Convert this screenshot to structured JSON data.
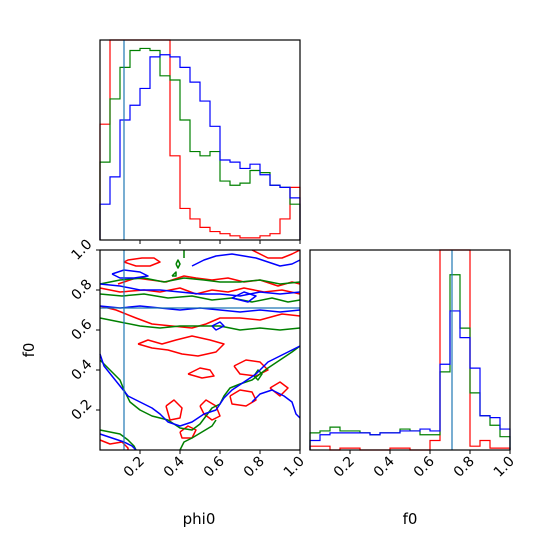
{
  "chart_data": {
    "type": "corner",
    "params": [
      "phi0",
      "f0"
    ],
    "x_axis_labels": {
      "corner": "phi0",
      "hist_f0": "f0"
    },
    "y_axis_label": "f0",
    "xlim": [
      0,
      1.0
    ],
    "ylim": [
      0,
      1.0
    ],
    "ticks": [
      0.2,
      0.4,
      0.6,
      0.8,
      1.0
    ],
    "tick_labels": [
      "0.2",
      "0.4",
      "0.6",
      "0.8",
      "1.0"
    ],
    "truth": {
      "phi0": 0.12,
      "f0": 0.71,
      "color": "#1f77b4"
    },
    "series": [
      {
        "color": "#ff0000"
      },
      {
        "color": "#008000"
      },
      {
        "color": "#0000ff"
      }
    ],
    "hist_bins": [
      0,
      0.05,
      0.1,
      0.15,
      0.2,
      0.25,
      0.3,
      0.35,
      0.4,
      0.45,
      0.5,
      0.55,
      0.6,
      0.65,
      0.7,
      0.75,
      0.8,
      0.85,
      0.9,
      0.95,
      1.0
    ],
    "hist_phi0": [
      [
        0.55,
        1.2,
        1.2,
        1.2,
        1.2,
        1.2,
        1.2,
        0.4,
        0.15,
        0.1,
        0.06,
        0.04,
        0.03,
        0.02,
        0.01,
        0.01,
        0.02,
        0.03,
        0.1,
        0.25
      ],
      [
        0.37,
        0.67,
        0.82,
        0.9,
        0.91,
        0.9,
        0.78,
        0.76,
        0.57,
        0.42,
        0.4,
        0.42,
        0.28,
        0.26,
        0.27,
        0.33,
        0.32,
        0.26,
        0.25,
        0.17
      ],
      [
        0.17,
        0.3,
        0.57,
        0.64,
        0.72,
        0.87,
        0.88,
        0.87,
        0.82,
        0.75,
        0.66,
        0.54,
        0.38,
        0.37,
        0.34,
        0.36,
        0.31,
        0.26,
        0.25,
        0.2
      ]
    ],
    "hist_f0": [
      [
        0.02,
        0.02,
        0.0,
        0.01,
        0.01,
        0.0,
        0.0,
        0.0,
        0.01,
        0.01,
        0.0,
        0.0,
        0.05,
        1.5,
        1.5,
        1.5,
        0.02,
        0.05,
        0.01,
        0.01
      ],
      [
        0.09,
        0.1,
        0.12,
        0.1,
        0.1,
        0.09,
        0.08,
        0.09,
        0.09,
        0.11,
        0.1,
        0.08,
        0.08,
        0.41,
        0.92,
        0.64,
        0.3,
        0.18,
        0.13,
        0.07
      ],
      [
        0.05,
        0.08,
        0.09,
        0.09,
        0.09,
        0.09,
        0.08,
        0.09,
        0.09,
        0.1,
        0.1,
        0.11,
        0.1,
        0.45,
        0.73,
        0.59,
        0.43,
        0.18,
        0.17,
        0.11
      ]
    ],
    "contours": [
      [
        [
          [
            0.09,
            0.83
          ],
          [
            0.18,
            0.86
          ],
          [
            0.33,
            0.84
          ],
          [
            0.42,
            0.87
          ],
          [
            0.48,
            0.86
          ],
          [
            0.56,
            0.85
          ],
          [
            0.64,
            0.86
          ],
          [
            0.72,
            0.84
          ],
          [
            0.8,
            0.85
          ],
          [
            0.89,
            0.82
          ],
          [
            0.96,
            0.84
          ],
          [
            1.0,
            0.83
          ]
        ],
        [
          [
            0.0,
            0.81
          ],
          [
            0.1,
            0.79
          ],
          [
            0.22,
            0.8
          ],
          [
            0.3,
            0.79
          ],
          [
            0.4,
            0.81
          ],
          [
            0.48,
            0.78
          ],
          [
            0.56,
            0.8
          ],
          [
            0.64,
            0.79
          ],
          [
            0.72,
            0.81
          ],
          [
            0.82,
            0.79
          ],
          [
            0.91,
            0.8
          ],
          [
            1.0,
            0.78
          ]
        ],
        [
          [
            0.0,
            0.72
          ],
          [
            0.08,
            0.7
          ],
          [
            0.18,
            0.66
          ],
          [
            0.26,
            0.63
          ],
          [
            0.36,
            0.62
          ],
          [
            0.46,
            0.61
          ],
          [
            0.53,
            0.63
          ],
          [
            0.6,
            0.66
          ],
          [
            0.7,
            0.66
          ],
          [
            0.8,
            0.65
          ],
          [
            0.91,
            0.68
          ],
          [
            1.0,
            0.67
          ]
        ],
        [
          [
            0.12,
            0.94
          ],
          [
            0.18,
            0.92
          ],
          [
            0.25,
            0.92
          ],
          [
            0.3,
            0.94
          ],
          [
            0.27,
            0.96
          ],
          [
            0.21,
            0.96
          ],
          [
            0.14,
            0.95
          ],
          [
            0.12,
            0.94
          ]
        ],
        [
          [
            0.76,
            1.0
          ],
          [
            0.84,
            0.96
          ],
          [
            0.91,
            0.96
          ],
          [
            0.96,
            0.98
          ],
          [
            1.0,
            1.0
          ]
        ],
        [
          [
            0.19,
            0.53
          ],
          [
            0.24,
            0.55
          ],
          [
            0.31,
            0.53
          ],
          [
            0.38,
            0.55
          ],
          [
            0.46,
            0.57
          ],
          [
            0.55,
            0.55
          ],
          [
            0.62,
            0.53
          ],
          [
            0.58,
            0.49
          ],
          [
            0.49,
            0.47
          ],
          [
            0.41,
            0.48
          ],
          [
            0.34,
            0.5
          ],
          [
            0.26,
            0.51
          ],
          [
            0.19,
            0.53
          ]
        ],
        [
          [
            0.44,
            0.38
          ],
          [
            0.5,
            0.41
          ],
          [
            0.55,
            0.4
          ],
          [
            0.57,
            0.37
          ],
          [
            0.51,
            0.36
          ],
          [
            0.44,
            0.38
          ]
        ],
        [
          [
            0.67,
            0.42
          ],
          [
            0.73,
            0.45
          ],
          [
            0.8,
            0.44
          ],
          [
            0.84,
            0.4
          ],
          [
            0.78,
            0.37
          ],
          [
            0.7,
            0.38
          ],
          [
            0.67,
            0.42
          ]
        ],
        [
          [
            0.65,
            0.27
          ],
          [
            0.7,
            0.3
          ],
          [
            0.76,
            0.29
          ],
          [
            0.78,
            0.25
          ],
          [
            0.73,
            0.22
          ],
          [
            0.66,
            0.23
          ],
          [
            0.65,
            0.27
          ]
        ],
        [
          [
            0.5,
            0.22
          ],
          [
            0.53,
            0.25
          ],
          [
            0.58,
            0.22
          ],
          [
            0.6,
            0.17
          ],
          [
            0.56,
            0.15
          ],
          [
            0.52,
            0.18
          ],
          [
            0.5,
            0.22
          ]
        ],
        [
          [
            0.33,
            0.22
          ],
          [
            0.37,
            0.25
          ],
          [
            0.41,
            0.21
          ],
          [
            0.4,
            0.16
          ],
          [
            0.35,
            0.15
          ],
          [
            0.33,
            0.22
          ]
        ],
        [
          [
            0.4,
            0.09
          ],
          [
            0.44,
            0.12
          ],
          [
            0.48,
            0.1
          ],
          [
            0.46,
            0.06
          ],
          [
            0.41,
            0.06
          ],
          [
            0.4,
            0.09
          ]
        ],
        [
          [
            0.0,
            0.05
          ],
          [
            0.05,
            0.03
          ],
          [
            0.11,
            0.04
          ],
          [
            0.14,
            0.01
          ],
          [
            0.14,
            0.0
          ]
        ],
        [
          [
            0.85,
            0.31
          ],
          [
            0.9,
            0.34
          ],
          [
            0.94,
            0.31
          ],
          [
            0.9,
            0.27
          ],
          [
            0.85,
            0.31
          ]
        ]
      ],
      [
        [
          [
            0.0,
            0.83
          ],
          [
            0.1,
            0.85
          ],
          [
            0.22,
            0.86
          ],
          [
            0.32,
            0.84
          ],
          [
            0.42,
            0.86
          ],
          [
            0.52,
            0.85
          ],
          [
            0.6,
            0.84
          ],
          [
            0.7,
            0.84
          ],
          [
            0.8,
            0.85
          ],
          [
            0.9,
            0.83
          ],
          [
            1.0,
            0.84
          ]
        ],
        [
          [
            0.0,
            0.78
          ],
          [
            0.11,
            0.77
          ],
          [
            0.22,
            0.78
          ],
          [
            0.34,
            0.76
          ],
          [
            0.46,
            0.77
          ],
          [
            0.56,
            0.75
          ],
          [
            0.66,
            0.76
          ],
          [
            0.76,
            0.74
          ],
          [
            0.86,
            0.76
          ],
          [
            0.94,
            0.74
          ],
          [
            1.0,
            0.75
          ]
        ],
        [
          [
            0.0,
            0.66
          ],
          [
            0.1,
            0.64
          ],
          [
            0.2,
            0.62
          ],
          [
            0.3,
            0.61
          ],
          [
            0.4,
            0.62
          ],
          [
            0.5,
            0.62
          ],
          [
            0.6,
            0.62
          ],
          [
            0.7,
            0.6
          ],
          [
            0.8,
            0.61
          ],
          [
            0.9,
            0.6
          ],
          [
            1.0,
            0.61
          ]
        ],
        [
          [
            0.0,
            0.45
          ],
          [
            0.05,
            0.4
          ],
          [
            0.1,
            0.35
          ],
          [
            0.12,
            0.3
          ],
          [
            0.15,
            0.24
          ],
          [
            0.2,
            0.2
          ],
          [
            0.26,
            0.17
          ],
          [
            0.34,
            0.15
          ],
          [
            0.4,
            0.11
          ],
          [
            0.46,
            0.1
          ],
          [
            0.5,
            0.13
          ],
          [
            0.53,
            0.17
          ],
          [
            0.56,
            0.21
          ],
          [
            0.6,
            0.23
          ],
          [
            0.62,
            0.27
          ],
          [
            0.65,
            0.31
          ],
          [
            0.7,
            0.33
          ],
          [
            0.76,
            0.35
          ],
          [
            0.8,
            0.38
          ],
          [
            0.84,
            0.41
          ],
          [
            0.9,
            0.45
          ],
          [
            0.96,
            0.49
          ],
          [
            1.0,
            0.52
          ]
        ],
        [
          [
            0.0,
            0.1
          ],
          [
            0.05,
            0.09
          ],
          [
            0.1,
            0.08
          ],
          [
            0.14,
            0.05
          ],
          [
            0.17,
            0.02
          ],
          [
            0.18,
            0.0
          ]
        ],
        [
          [
            0.4,
            0.0
          ],
          [
            0.42,
            0.04
          ],
          [
            0.46,
            0.06
          ],
          [
            0.51,
            0.09
          ],
          [
            0.56,
            0.12
          ],
          [
            0.58,
            0.15
          ]
        ],
        [
          [
            0.77,
            0.37
          ],
          [
            0.79,
            0.4
          ],
          [
            0.81,
            0.38
          ],
          [
            0.79,
            0.35
          ],
          [
            0.77,
            0.37
          ]
        ],
        [
          [
            0.38,
            0.93
          ],
          [
            0.39,
            0.95
          ],
          [
            0.4,
            0.93
          ],
          [
            0.39,
            0.91
          ],
          [
            0.38,
            0.93
          ]
        ],
        [
          [
            0.42,
            0.96
          ],
          [
            0.42,
            1.0
          ]
        ],
        [
          [
            0.36,
            0.87
          ],
          [
            0.38,
            0.89
          ],
          [
            0.38,
            0.87
          ],
          [
            0.36,
            0.87
          ]
        ]
      ],
      [
        [
          [
            0.06,
            0.88
          ],
          [
            0.12,
            0.9
          ],
          [
            0.2,
            0.89
          ],
          [
            0.24,
            0.87
          ],
          [
            0.17,
            0.86
          ],
          [
            0.1,
            0.86
          ],
          [
            0.06,
            0.88
          ]
        ],
        [
          [
            0.46,
            0.92
          ],
          [
            0.52,
            0.95
          ],
          [
            0.58,
            0.97
          ],
          [
            0.66,
            0.98
          ],
          [
            0.72,
            0.97
          ],
          [
            0.78,
            0.96
          ],
          [
            0.84,
            0.94
          ],
          [
            0.9,
            0.92
          ],
          [
            0.96,
            0.93
          ],
          [
            1.0,
            0.95
          ]
        ],
        [
          [
            0.0,
            0.83
          ],
          [
            0.1,
            0.82
          ],
          [
            0.2,
            0.8
          ],
          [
            0.3,
            0.8
          ],
          [
            0.4,
            0.79
          ],
          [
            0.5,
            0.78
          ],
          [
            0.6,
            0.78
          ],
          [
            0.7,
            0.77
          ],
          [
            0.8,
            0.79
          ],
          [
            0.9,
            0.78
          ],
          [
            1.0,
            0.79
          ]
        ],
        [
          [
            0.0,
            0.72
          ],
          [
            0.1,
            0.71
          ],
          [
            0.2,
            0.72
          ],
          [
            0.3,
            0.71
          ],
          [
            0.4,
            0.7
          ],
          [
            0.5,
            0.71
          ],
          [
            0.6,
            0.7
          ],
          [
            0.7,
            0.69
          ],
          [
            0.8,
            0.7
          ],
          [
            0.9,
            0.69
          ],
          [
            1.0,
            0.7
          ]
        ],
        [
          [
            0.66,
            0.76
          ],
          [
            0.72,
            0.79
          ],
          [
            0.78,
            0.77
          ],
          [
            0.74,
            0.74
          ],
          [
            0.66,
            0.76
          ]
        ],
        [
          [
            0.0,
            0.48
          ],
          [
            0.02,
            0.42
          ],
          [
            0.06,
            0.37
          ],
          [
            0.1,
            0.32
          ],
          [
            0.14,
            0.27
          ],
          [
            0.2,
            0.24
          ],
          [
            0.26,
            0.21
          ],
          [
            0.3,
            0.18
          ],
          [
            0.34,
            0.14
          ],
          [
            0.4,
            0.12
          ],
          [
            0.46,
            0.14
          ],
          [
            0.52,
            0.18
          ],
          [
            0.58,
            0.2
          ],
          [
            0.62,
            0.26
          ],
          [
            0.66,
            0.3
          ],
          [
            0.72,
            0.34
          ],
          [
            0.78,
            0.38
          ],
          [
            0.84,
            0.44
          ],
          [
            0.9,
            0.47
          ],
          [
            0.96,
            0.5
          ],
          [
            1.0,
            0.52
          ]
        ],
        [
          [
            0.76,
            0.24
          ],
          [
            0.8,
            0.28
          ],
          [
            0.86,
            0.3
          ],
          [
            0.92,
            0.27
          ],
          [
            0.96,
            0.24
          ],
          [
            0.98,
            0.18
          ],
          [
            1.0,
            0.16
          ]
        ],
        [
          [
            0.56,
            0.62
          ],
          [
            0.6,
            0.64
          ],
          [
            0.62,
            0.62
          ],
          [
            0.58,
            0.6
          ],
          [
            0.56,
            0.62
          ]
        ],
        [
          [
            0.0,
            0.08
          ],
          [
            0.06,
            0.06
          ],
          [
            0.12,
            0.04
          ],
          [
            0.16,
            0.02
          ],
          [
            0.18,
            0.0
          ]
        ]
      ]
    ]
  }
}
